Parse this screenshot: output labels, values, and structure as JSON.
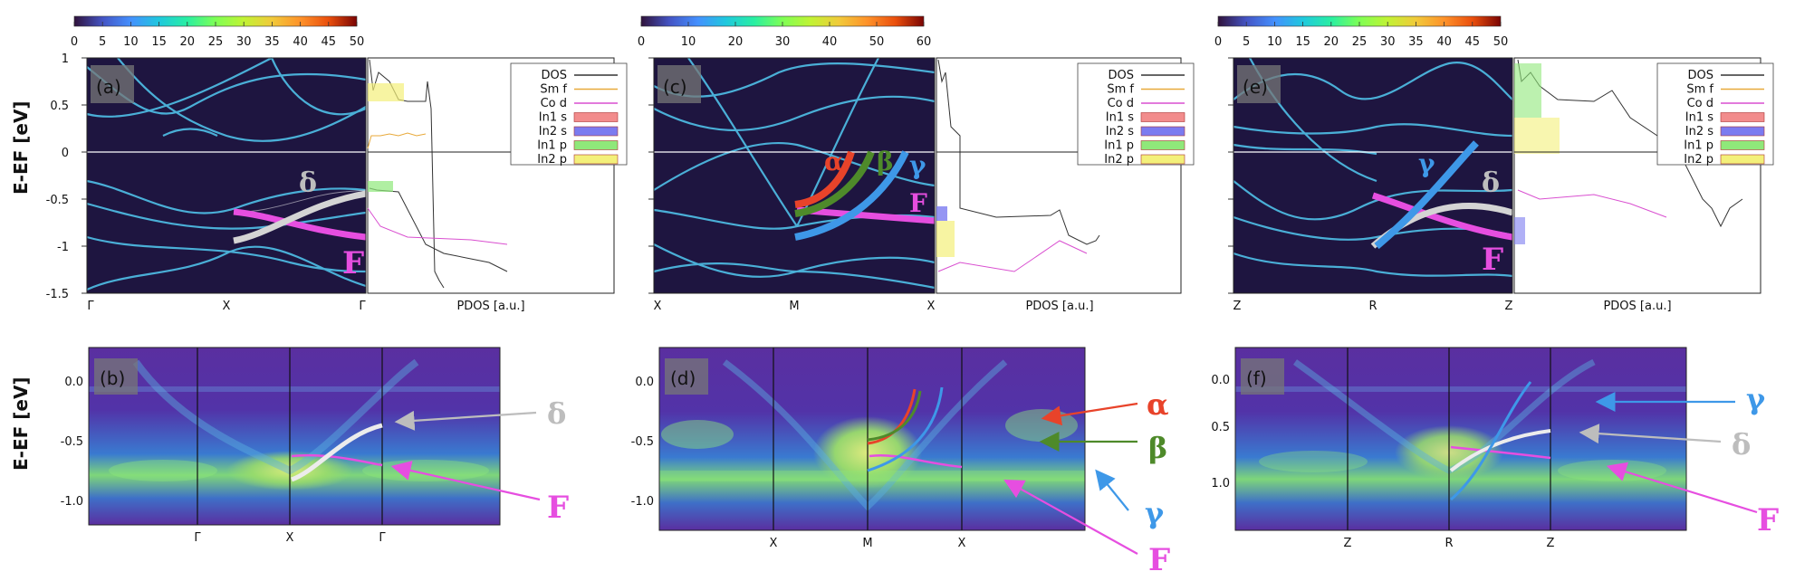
{
  "figure": {
    "ylabel_top": "E-EF [eV]",
    "ylabel_bottom": "E-EF [eV]",
    "pdos_xlabel": "PDOS [a.u.]",
    "legend": [
      "DOS",
      "Sm f",
      "Co d",
      "In1 s",
      "In2 s",
      "In1 p",
      "In2 p"
    ],
    "legend_colors": [
      "#333333",
      "#e8a93a",
      "#d94fd0",
      "#f28c8c",
      "#7b7bf0",
      "#8fe87a",
      "#f3f07a"
    ]
  },
  "colorbars": [
    {
      "ticks": [
        "0",
        "5",
        "10",
        "15",
        "20",
        "25",
        "30",
        "35",
        "40",
        "45",
        "50"
      ],
      "range": [
        0,
        50
      ]
    },
    {
      "ticks": [
        "0",
        "10",
        "20",
        "30",
        "40",
        "50",
        "60"
      ],
      "range": [
        0,
        60
      ]
    },
    {
      "ticks": [
        "0",
        "5",
        "10",
        "15",
        "20",
        "25",
        "30",
        "35",
        "40",
        "45",
        "50"
      ],
      "range": [
        0,
        50
      ]
    }
  ],
  "chart_data": [
    {
      "type": "heatmap",
      "panel": "(a)",
      "x_ticks": [
        "Γ",
        "X",
        "Γ"
      ],
      "y_ticks": [
        "1",
        "0.5",
        "0",
        "-0.5",
        "-1",
        "-1.5"
      ],
      "ylim": [
        -1.5,
        1
      ],
      "annotations": [
        "δ",
        "F"
      ]
    },
    {
      "type": "heatmap",
      "panel": "(c)",
      "x_ticks": [
        "X",
        "M",
        "X"
      ],
      "ylim": [
        -1.5,
        1
      ],
      "annotations": [
        "α",
        "β",
        "γ",
        "F"
      ]
    },
    {
      "type": "heatmap",
      "panel": "(e)",
      "x_ticks": [
        "Z",
        "R",
        "Z"
      ],
      "ylim": [
        -1.5,
        1
      ],
      "annotations": [
        "γ",
        "δ",
        "F"
      ]
    },
    {
      "type": "heatmap",
      "panel": "(b)",
      "x_ticks": [
        "Γ",
        "X",
        "Γ"
      ],
      "y_ticks": [
        "0.0",
        "-0.5",
        "-1.0"
      ],
      "annotations": [
        "δ",
        "F"
      ]
    },
    {
      "type": "heatmap",
      "panel": "(d)",
      "x_ticks": [
        "X",
        "M",
        "X"
      ],
      "y_ticks": [
        "0.0",
        "-0.5",
        "-1.0"
      ],
      "annotations": [
        "α",
        "β",
        "γ",
        "F"
      ]
    },
    {
      "type": "heatmap",
      "panel": "(f)",
      "x_ticks": [
        "Z",
        "R",
        "Z"
      ],
      "y_ticks": [
        "0.0",
        "0.5",
        "1.0"
      ],
      "annotations": [
        "γ",
        "δ",
        "F"
      ]
    }
  ],
  "colors": {
    "alpha": "#e8432a",
    "beta": "#4e8a2a",
    "gamma": "#3e98e8",
    "delta": "#bdbdbd",
    "F": "#e64ee0",
    "bg": "#1e1540"
  }
}
